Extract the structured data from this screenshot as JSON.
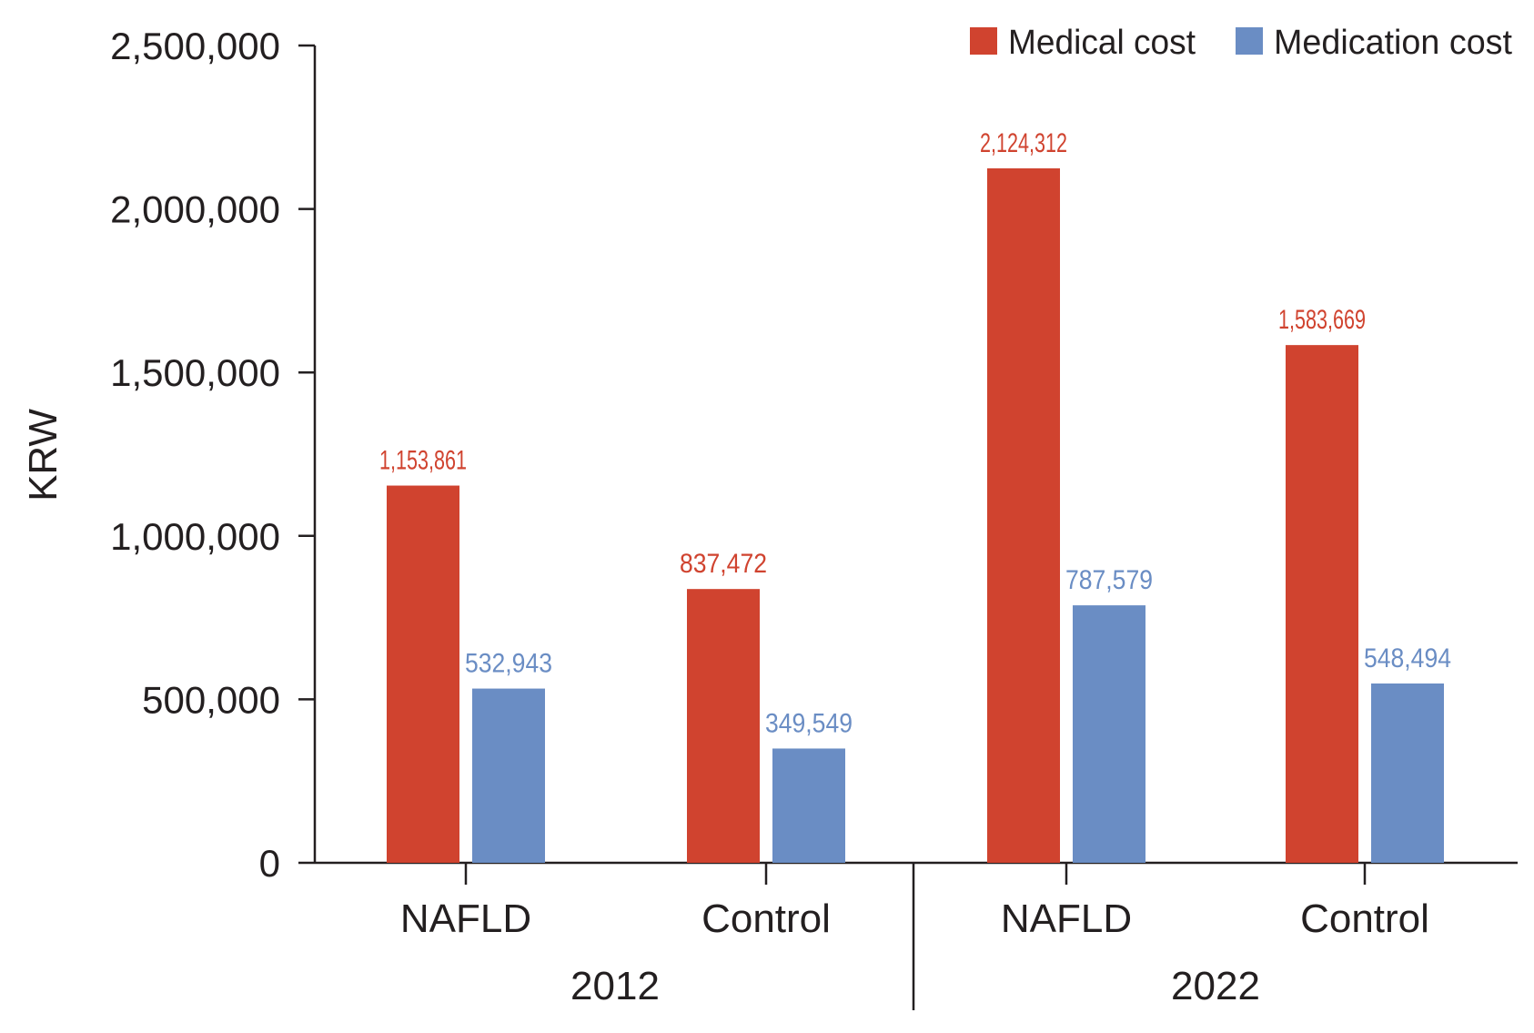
{
  "chart_data": {
    "type": "bar",
    "ylabel": "KRW",
    "xlabel": "",
    "ylim": [
      0,
      2500000
    ],
    "yticks": [
      0,
      500000,
      1000000,
      1500000,
      2000000,
      2500000
    ],
    "ytick_labels": [
      "0",
      "500,000",
      "1,000,000",
      "1,500,000",
      "2,000,000",
      "2,500,000"
    ],
    "categories": [
      "NAFLD",
      "Control",
      "NAFLD",
      "Control"
    ],
    "groups": [
      {
        "label": "2012",
        "categories": [
          "NAFLD",
          "Control"
        ]
      },
      {
        "label": "2022",
        "categories": [
          "NAFLD",
          "Control"
        ]
      }
    ],
    "series": [
      {
        "name": "Medical cost",
        "color": "#d0432f",
        "values": [
          1153861,
          837472,
          2124312,
          1583669
        ],
        "labels": [
          "1,153,861",
          "837,472",
          "2,124,312",
          "1,583,669"
        ]
      },
      {
        "name": "Medication cost",
        "color": "#6a8dc4",
        "values": [
          532943,
          349549,
          787579,
          548494
        ],
        "labels": [
          "532,943",
          "349,549",
          "787,579",
          "548,494"
        ]
      }
    ],
    "legend": {
      "position": "top-right",
      "entries": [
        "Medical cost",
        "Medication cost"
      ]
    },
    "grid": false
  }
}
